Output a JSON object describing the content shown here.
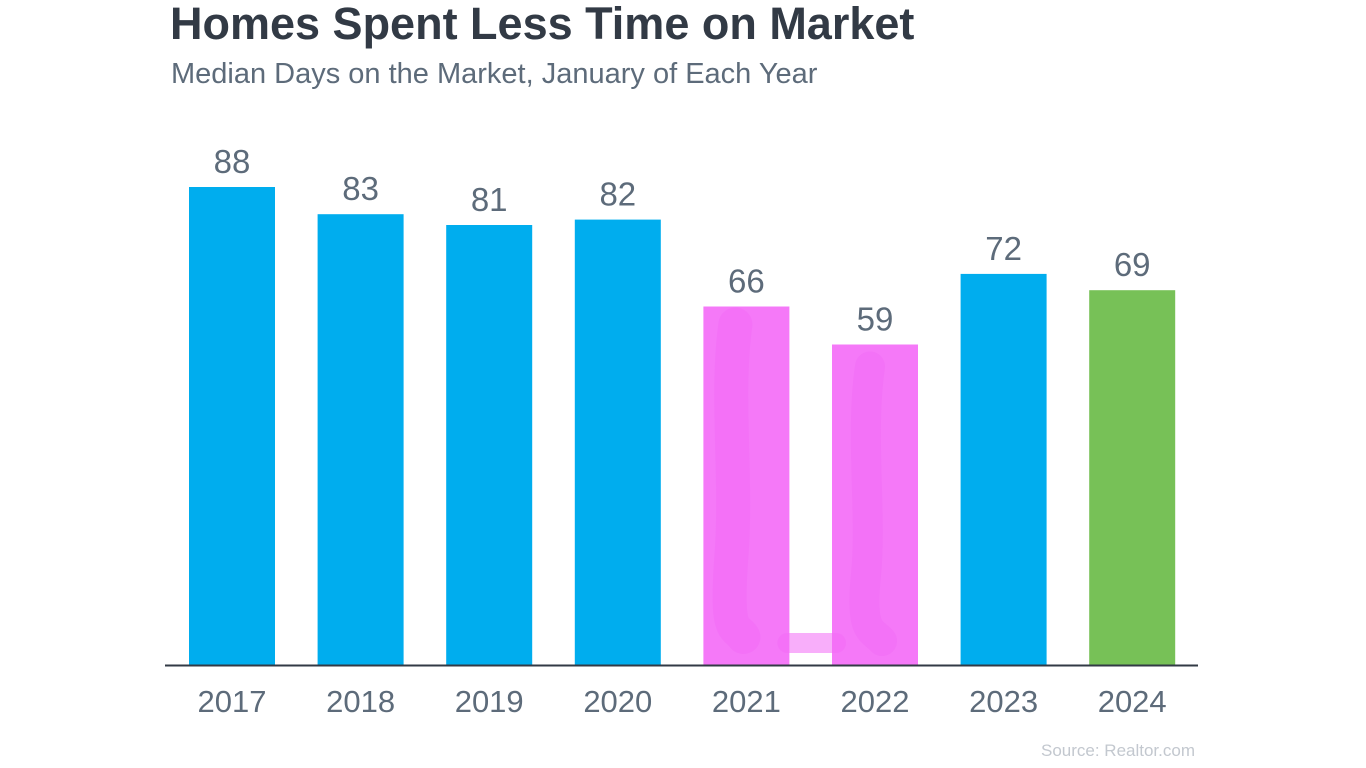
{
  "chart_data": {
    "type": "bar",
    "title": "Homes Spent Less Time on Market",
    "subtitle": "Median Days on the Market, January of Each Year",
    "categories": [
      "2017",
      "2018",
      "2019",
      "2020",
      "2021",
      "2022",
      "2023",
      "2024"
    ],
    "values": [
      88,
      83,
      81,
      82,
      66,
      59,
      72,
      69
    ],
    "data_labels": [
      "88",
      "83",
      "81",
      "82",
      "66",
      "59",
      "72",
      "69"
    ],
    "bar_colors": [
      "#00adee",
      "#00adee",
      "#00adee",
      "#00adee",
      "#f579f8",
      "#f579f8",
      "#00adee",
      "#77c157"
    ],
    "highlight_marker": {
      "categories": [
        "2021",
        "2022"
      ],
      "color": "#f26bf5",
      "shape": "U-shaped highlight linking the 2021 and 2022 bars"
    },
    "ylim": [
      0,
      88
    ],
    "xlabel": "",
    "ylabel": "",
    "grid": false,
    "legend": "none",
    "baseline": true,
    "source": "Source: Realtor.com"
  },
  "colors": {
    "title": "#323a45",
    "subtitle": "#5d6b7a",
    "label": "#5d6b7a",
    "axis": "#323a45",
    "source": "#c3c8cf"
  }
}
